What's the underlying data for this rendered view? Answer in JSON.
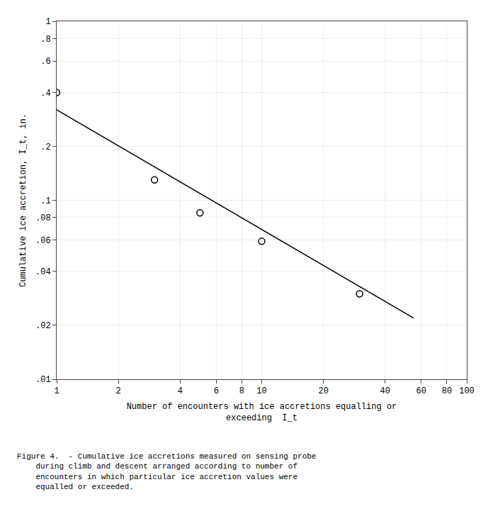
{
  "chart_data": {
    "type": "scatter",
    "log": true,
    "grid": true,
    "xlabel": "Number of encounters with ice accretions equalling or\nexceeding  I_t",
    "ylabel": "Cumulative ice accretion, I_t, in.",
    "annotations": [
      "Figure 4.  - Cumulative ice accretions measured on sensing probe",
      "    during climb and descent arranged according to number of",
      "    encounters in which particular ice accretion values were",
      "    equalled or exceeded."
    ],
    "xlim": [
      1,
      100
    ],
    "ylim": [
      0.01,
      1.0
    ],
    "xticks": [
      1,
      2,
      4,
      6,
      8,
      10,
      20,
      40,
      60,
      80,
      100
    ],
    "yticks": [
      {
        "value": 0.01,
        "label": ".01"
      },
      {
        "value": 0.02,
        "label": ".02"
      },
      {
        "value": 0.04,
        "label": ".04"
      },
      {
        "value": 0.06,
        "label": ".06"
      },
      {
        "value": 0.08,
        "label": ".08"
      },
      {
        "value": 0.1,
        "label": ".1"
      },
      {
        "value": 0.2,
        "label": ".2"
      },
      {
        "value": 0.4,
        "label": ".4"
      },
      {
        "value": 0.6,
        "label": ".6"
      },
      {
        "value": 0.8,
        "label": ".8"
      },
      1
    ],
    "series": [
      {
        "type": "line",
        "color": "#000000",
        "line_style": "solid",
        "x": [
          1,
          55
        ],
        "values": [
          0.32,
          0.022
        ]
      },
      {
        "type": "scatter",
        "color": "#000000",
        "marker": "circle-open",
        "x": [
          1,
          3,
          5,
          10,
          30
        ],
        "values": [
          0.4,
          0.13,
          0.085,
          0.059,
          0.03
        ]
      }
    ]
  }
}
